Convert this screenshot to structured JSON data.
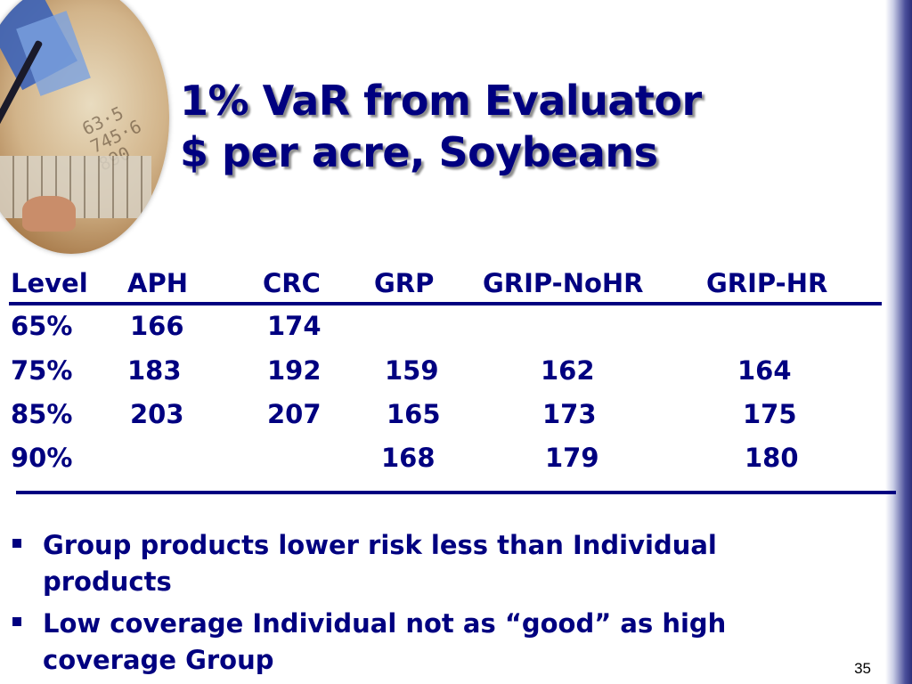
{
  "title": {
    "line1": "1% VaR from Evaluator",
    "line2": "$ per acre, Soybeans"
  },
  "table": {
    "headers": [
      "Level",
      "APH",
      "CRC",
      "GRP",
      "GRIP-NoHR",
      "GRIP-HR"
    ],
    "rows": [
      [
        "65%",
        "166",
        "174",
        "",
        "",
        ""
      ],
      [
        "75%",
        "183",
        "192",
        "159",
        "162",
        "164"
      ],
      [
        "85%",
        "203",
        "207",
        "165",
        "173",
        "175"
      ],
      [
        "90%",
        "",
        "",
        "168",
        "179",
        "180"
      ]
    ]
  },
  "bullets": [
    "Group products lower risk less than Individual products",
    "Low coverage Individual not as “good” as high coverage Group"
  ],
  "page_number": "35",
  "colors": {
    "text": "#000080",
    "accent_bar": "#2c2f7a"
  },
  "icons": {
    "decorative_photo": "finance-collage-image",
    "bullet": "square-bullet-icon"
  }
}
